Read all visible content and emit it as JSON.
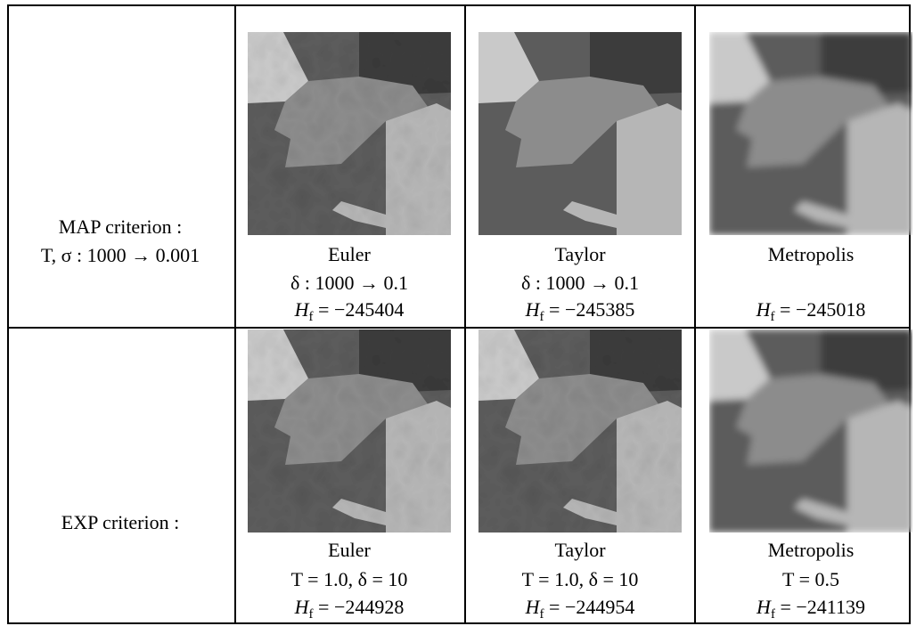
{
  "table": {
    "rows": [
      {
        "label": [
          "MAP criterion :",
          "T, σ : 1000 → 0.001"
        ],
        "cells": [
          {
            "method": "Euler",
            "params": "δ : 1000 → 0.1",
            "energy": {
              "lhs": "H",
              "sub": "f",
              "rhs": " = −245404"
            }
          },
          {
            "method": "Taylor",
            "params": "δ : 1000 → 0.1",
            "energy": {
              "lhs": "H",
              "sub": "f",
              "rhs": " = −245385"
            }
          },
          {
            "method": "Metropolis",
            "energy": {
              "lhs": "H",
              "sub": "f",
              "rhs": " = −245018"
            }
          }
        ]
      },
      {
        "label": [
          "EXP criterion :"
        ],
        "cells": [
          {
            "method": "Euler",
            "params": "T = 1.0, δ = 10",
            "energy": {
              "lhs": "H",
              "sub": "f",
              "rhs": " = −244928"
            }
          },
          {
            "method": "Taylor",
            "params": "T = 1.0, δ = 10",
            "energy": {
              "lhs": "H",
              "sub": "f",
              "rhs": " = −244954"
            }
          },
          {
            "method": "Metropolis",
            "params": "T = 0.5",
            "energy": {
              "lhs": "H",
              "sub": "f",
              "rhs": " = −241139"
            }
          }
        ]
      }
    ]
  }
}
